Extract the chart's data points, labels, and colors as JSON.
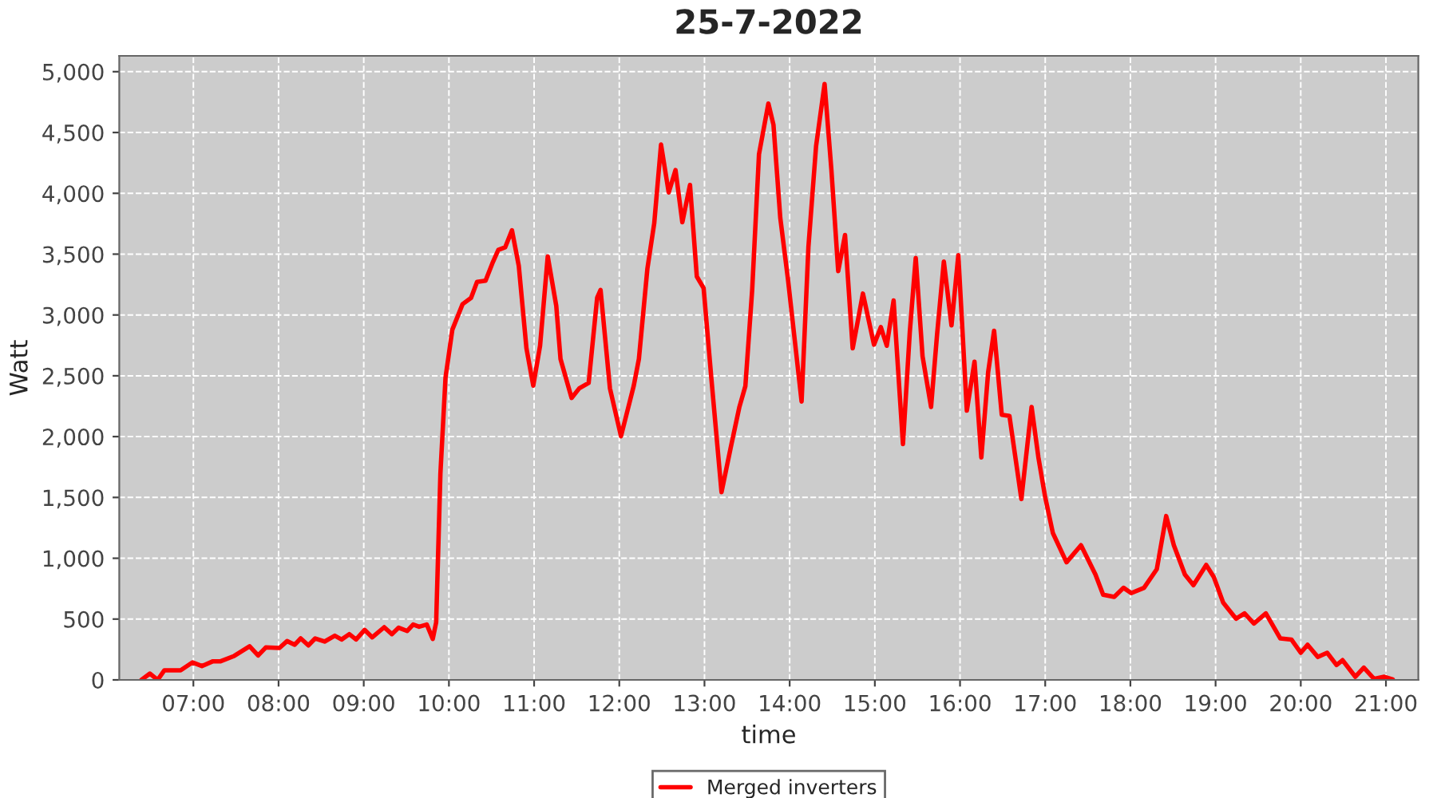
{
  "chart_data": {
    "type": "line",
    "title": "25-7-2022",
    "xlabel": "time",
    "ylabel": "Watt",
    "x": [
      6.39,
      6.49,
      6.58,
      6.66,
      6.85,
      6.99,
      7.1,
      7.23,
      7.32,
      7.48,
      7.66,
      7.76,
      7.85,
      8.01,
      8.1,
      8.19,
      8.26,
      8.35,
      8.43,
      8.54,
      8.66,
      8.74,
      8.83,
      8.91,
      9.01,
      9.1,
      9.24,
      9.33,
      9.41,
      9.51,
      9.58,
      9.65,
      9.74,
      9.81,
      9.85,
      9.9,
      9.96,
      10.04,
      10.16,
      10.26,
      10.33,
      10.43,
      10.51,
      10.58,
      10.66,
      10.74,
      10.82,
      10.91,
      10.99,
      11.07,
      11.16,
      11.26,
      11.31,
      11.44,
      11.53,
      11.64,
      11.74,
      11.78,
      11.89,
      12.02,
      12.17,
      12.23,
      12.33,
      12.41,
      12.49,
      12.58,
      12.66,
      12.74,
      12.83,
      12.91,
      12.99,
      13.08,
      13.2,
      13.31,
      13.41,
      13.48,
      13.56,
      13.64,
      13.75,
      13.81,
      13.89,
      13.98,
      14.06,
      14.14,
      14.22,
      14.31,
      14.41,
      14.49,
      14.57,
      14.65,
      14.74,
      14.86,
      14.99,
      15.07,
      15.14,
      15.22,
      15.33,
      15.41,
      15.48,
      15.56,
      15.66,
      15.73,
      15.81,
      15.9,
      15.98,
      16.08,
      16.17,
      16.25,
      16.33,
      16.4,
      16.49,
      16.58,
      16.72,
      16.84,
      16.92,
      17.0,
      17.09,
      17.25,
      17.42,
      17.59,
      17.68,
      17.81,
      17.92,
      18.01,
      18.16,
      18.31,
      18.42,
      18.51,
      18.64,
      18.74,
      18.89,
      18.98,
      19.09,
      19.24,
      19.34,
      19.45,
      19.59,
      19.76,
      19.89,
      20.0,
      20.08,
      20.2,
      20.31,
      20.42,
      20.49,
      20.64,
      20.74,
      20.86,
      20.98,
      21.08
    ],
    "series": [
      {
        "name": "Merged inverters",
        "color": "#ff0000",
        "values": [
          0,
          52,
          0,
          79,
          79,
          144,
          114,
          153,
          153,
          197,
          276,
          201,
          267,
          262,
          319,
          289,
          341,
          284,
          341,
          315,
          363,
          332,
          376,
          332,
          411,
          350,
          433,
          376,
          429,
          402,
          455,
          437,
          455,
          337,
          472,
          1697,
          2485,
          2879,
          3089,
          3141,
          3272,
          3281,
          3425,
          3535,
          3556,
          3696,
          3404,
          2726,
          2419,
          2747,
          3482,
          3075,
          2638,
          2318,
          2397,
          2441,
          3141,
          3206,
          2397,
          2003,
          2419,
          2638,
          3381,
          3753,
          4401,
          4007,
          4191,
          3762,
          4069,
          3316,
          3220,
          2485,
          1544,
          1916,
          2244,
          2415,
          3206,
          4322,
          4738,
          4563,
          3797,
          3294,
          2791,
          2288,
          3557,
          4388,
          4899,
          4191,
          3360,
          3657,
          2726,
          3176,
          2756,
          2900,
          2747,
          3119,
          1938,
          2857,
          3469,
          2660,
          2244,
          2835,
          3439,
          2914,
          3491,
          2214,
          2616,
          1829,
          2529,
          2870,
          2179,
          2170,
          1487,
          2244,
          1829,
          1501,
          1207,
          967,
          1107,
          866,
          700,
          682,
          757,
          713,
          757,
          910,
          1347,
          1107,
          866,
          779,
          945,
          844,
          634,
          503,
          547,
          464,
          547,
          341,
          332,
          223,
          289,
          188,
          223,
          122,
          162,
          26,
          101,
          9,
          26,
          4
        ]
      }
    ],
    "xlim": [
      6.13,
      21.38
    ],
    "ylim": [
      0,
      5130
    ],
    "xticks": [
      {
        "value": 7,
        "label": "07:00"
      },
      {
        "value": 8,
        "label": "08:00"
      },
      {
        "value": 9,
        "label": "09:00"
      },
      {
        "value": 10,
        "label": "10:00"
      },
      {
        "value": 11,
        "label": "11:00"
      },
      {
        "value": 12,
        "label": "12:00"
      },
      {
        "value": 13,
        "label": "13:00"
      },
      {
        "value": 14,
        "label": "14:00"
      },
      {
        "value": 15,
        "label": "15:00"
      },
      {
        "value": 16,
        "label": "16:00"
      },
      {
        "value": 17,
        "label": "17:00"
      },
      {
        "value": 18,
        "label": "18:00"
      },
      {
        "value": 19,
        "label": "19:00"
      },
      {
        "value": 20,
        "label": "20:00"
      },
      {
        "value": 21,
        "label": "21:00"
      }
    ],
    "yticks": [
      0,
      500,
      {
        "value": 1000,
        "label": "1,000"
      },
      {
        "value": 1500,
        "label": "1,500"
      },
      {
        "value": 2000,
        "label": "2,000"
      },
      {
        "value": 2500,
        "label": "2,500"
      },
      {
        "value": 3000,
        "label": "3,000"
      },
      {
        "value": 3500,
        "label": "3,500"
      },
      {
        "value": 4000,
        "label": "4,000"
      },
      {
        "value": 4500,
        "label": "4,500"
      },
      {
        "value": 5000,
        "label": "5,000"
      }
    ],
    "grid": true,
    "legend": "bottom",
    "line_style": "solid"
  }
}
